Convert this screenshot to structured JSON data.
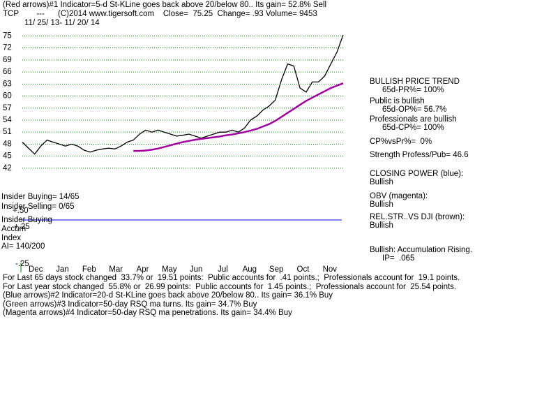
{
  "header": [
    "(Red arrows)#1 Indicator=5-d St-KLine goes back above 20/below 80.. Its gain= 52.8% Sell",
    "TCP        ---      (C)2014 www.tigersoft.com    Close=  75.25  Change= .93 Volume= 9453"
  ],
  "chart_data": {
    "type": "line",
    "subtitle": "11/ 25/ 13- 11/ 20/ 14",
    "x_axis_labels": [
      "Dec",
      "Jan",
      "Feb",
      "Mar",
      "Apr",
      "May",
      "Jun",
      "Jul",
      "Aug",
      "Sep",
      "Oct",
      "Nov"
    ],
    "series": [
      {
        "color": "#000000",
        "values": [
          48.5,
          47,
          45.5,
          47.5,
          49,
          48.5,
          48,
          47.5,
          48,
          47.5,
          46.5,
          46,
          46.5,
          46.8,
          47,
          46.8,
          47.5,
          48.5,
          49,
          50.5,
          51.5,
          51,
          51.5,
          51,
          50.5,
          50,
          50.2,
          50.5,
          50,
          49.5,
          50,
          50.5,
          51,
          51,
          51.5,
          51,
          52,
          54,
          55,
          56.5,
          57.5,
          59,
          64,
          68,
          67.5,
          62,
          61,
          63.5,
          63.5,
          65,
          68,
          71,
          75.25
        ]
      },
      {
        "color": "#a000a0",
        "values": [
          null,
          null,
          null,
          null,
          null,
          null,
          null,
          null,
          null,
          null,
          null,
          null,
          null,
          null,
          null,
          null,
          null,
          null,
          46.3,
          46.3,
          46.4,
          46.6,
          46.9,
          47.3,
          47.7,
          48.1,
          48.5,
          48.8,
          49.1,
          49.3,
          49.5,
          49.7,
          49.9,
          50.2,
          50.4,
          50.7,
          51,
          51.4,
          51.8,
          52.4,
          53,
          53.8,
          54.8,
          55.8,
          56.8,
          57.8,
          58.8,
          59.6,
          60.4,
          61.2,
          62,
          62.6,
          63.2
        ]
      }
    ],
    "ylim": [
      39,
      77
    ],
    "yticks": [
      42,
      45,
      48,
      51,
      54,
      57,
      60,
      63,
      66,
      69,
      72,
      75
    ],
    "grid": true,
    "grid_color": "#008000"
  },
  "lower_panel": [
    "Insider Buying= 14/65",
    "Insider Selling= 0/65",
    "+.50",
    "Insider Buying",
    "+.25",
    "Accum",
    "Index",
    "AI= 140/200",
    "-.25"
  ],
  "side_panel": {
    "trend": "BULLISH PRICE TREND",
    "pr": "65d-PR%= 100%",
    "public": "Public is bullish",
    "op": "65d-OP%= 56.7%",
    "pros": "Professionals are bullish",
    "cp": "65d-CP%= 100%",
    "cpvspr": "CP%vsPr%=  0%",
    "strength": "Strength Profess/Pub= 46.6",
    "closing": "CLOSING POWER (blue):",
    "closing_state": "Bullish",
    "obv": "OBV (magenta):",
    "obv_state": "Bullish",
    "relstr": "REL.STR..VS DJI (brown):",
    "relstr_state": "Bullish",
    "accum": "Bullish: Accumulation Rising.",
    "ip": "IP=  .065"
  },
  "footer": [
    "For Last 65 days stock changed  33.7% or  19.51 points:  Public accounts for  .41 points.;  Professionals account for  19.1 points.",
    "For Last year stock changed  55.8% or  26.99 points:  Public accounts for  1.45 points.;  Professionals account for  25.54 points.",
    "(Blue arrows)#2 Indicator=20-d St-KLine goes back above 20/below 80.. Its gain= 36.1% Buy",
    "(Green arrows)#3 Indicator=50-day RSQ ma turns. Its gain= 34.7% Buy",
    "(Magenta arrows)#4 Indicator=50-day RSQ ma penetrations. Its gain= 34.4% Buy"
  ]
}
